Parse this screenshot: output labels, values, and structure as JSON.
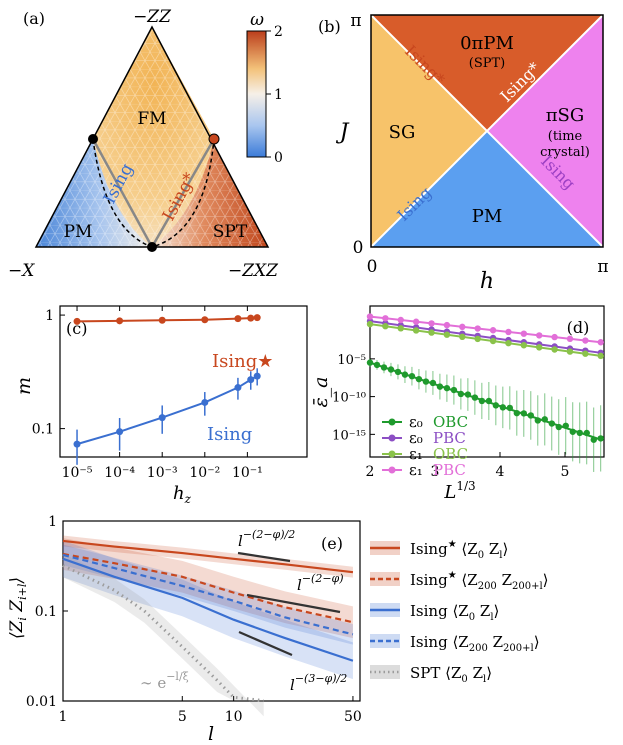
{
  "colors": {
    "red": "#c8471e",
    "blue": "#3a6fd0",
    "orange": "#f5b54a",
    "panel_b_sg": "#f7c36a",
    "panel_b_top": "#d85c2a",
    "panel_b_right": "#ee82ee",
    "panel_b_bottom": "#5b9ff0",
    "green": "#1f9a2d",
    "light_green": "#8ac24a",
    "purple": "#8c4fc4",
    "pink": "#e26fd8",
    "gray": "#9c9c9c"
  },
  "chart_data": [
    {
      "panel": "(a)",
      "type": "heatmap",
      "corners": {
        "top": "−ZZ",
        "left": "−X",
        "right": "−ZXZ"
      },
      "regions": [
        "FM",
        "PM",
        "SPT"
      ],
      "lines": [
        "Ising",
        "Ising*"
      ],
      "colorbar": {
        "label": "ω",
        "ticks": [
          "0",
          "1",
          "2"
        ],
        "range": [
          0,
          2
        ]
      }
    },
    {
      "panel": "(b)",
      "type": "heatmap",
      "xlabel": "h",
      "ylabel": "J",
      "xticks": [
        "0",
        "π"
      ],
      "yticks": [
        "0",
        "π"
      ],
      "regions": {
        "top": [
          "0πPM",
          "(SPT)"
        ],
        "left": "SG",
        "right": [
          "πSG",
          "(time",
          "crystal)"
        ],
        "bottom": "PM"
      },
      "lines": {
        "upper_left": "Ising*",
        "upper_right": "Ising*",
        "lower_left": "Ising",
        "lower_right": "Ising"
      }
    },
    {
      "panel": "(c)",
      "type": "line",
      "xlabel": "h_z",
      "ylabel": "m",
      "xscale": "log",
      "yscale": "log",
      "xticks": [
        "10⁻⁵",
        "10⁻⁴",
        "10⁻³",
        "10⁻²",
        "10⁻¹"
      ],
      "yticks": [
        "0.1",
        "1"
      ],
      "series": [
        {
          "name": "Ising★",
          "x": [
            1e-05,
            0.0001,
            0.001,
            0.01,
            0.06,
            0.12,
            0.17
          ],
          "y": [
            0.88,
            0.89,
            0.9,
            0.91,
            0.93,
            0.94,
            0.95
          ],
          "err": [
            0.03,
            0.03,
            0.03,
            0.03,
            0.03,
            0.03,
            0.03
          ]
        },
        {
          "name": "Ising",
          "x": [
            1e-05,
            0.0001,
            0.001,
            0.01,
            0.06,
            0.12,
            0.17
          ],
          "y": [
            0.073,
            0.094,
            0.125,
            0.17,
            0.23,
            0.27,
            0.29
          ],
          "err": [
            0.025,
            0.03,
            0.035,
            0.04,
            0.05,
            0.05,
            0.05
          ]
        }
      ]
    },
    {
      "panel": "(d)",
      "type": "line",
      "xlabel": "L^{1/3}",
      "ylabel": "ε̄_a",
      "yscale": "log",
      "xlim": [
        2,
        5.6
      ],
      "ylim_exp": [
        -18,
        2
      ],
      "xticks": [
        "2",
        "3",
        "4",
        "5"
      ],
      "yticks": [
        "10⁻⁵",
        "10⁻¹⁰",
        "10⁻¹⁵"
      ],
      "legend": [
        {
          "sym": "ε₀",
          "bc": "OBC"
        },
        {
          "sym": "ε₀",
          "bc": "PBC"
        },
        {
          "sym": "ε₁",
          "bc": "OBC"
        },
        {
          "sym": "ε₁",
          "bc": "PBC"
        }
      ],
      "series": [
        {
          "name": "ε₀ PBC",
          "x0": 2.0,
          "x1": 5.55,
          "logy0": 0.0,
          "logy1": -4.2,
          "n": 16
        },
        {
          "name": "ε₁ OBC",
          "x0": 2.0,
          "x1": 5.55,
          "logy0": -0.4,
          "logy1": -4.6,
          "n": 16
        },
        {
          "name": "ε₁ PBC",
          "x0": 2.0,
          "x1": 5.55,
          "logy0": 0.6,
          "logy1": -2.8,
          "n": 16
        },
        {
          "name": "ε₀ OBC",
          "x0": 2.0,
          "x1": 5.55,
          "logy0": -5.5,
          "logy1": -15.7,
          "n": 34
        }
      ]
    },
    {
      "panel": "(e)",
      "type": "line",
      "xlabel": "l",
      "ylabel": "⟨Z_i Z_{i+l}⟩",
      "xscale": "log",
      "yscale": "log",
      "xticks": [
        "1",
        "5",
        "10",
        "50"
      ],
      "yticks": [
        "0.01",
        "0.1",
        "1"
      ],
      "legend": [
        "Ising★ ⟨Z₀ Z_l⟩",
        "Ising★ ⟨Z₂₀₀ Z₂₀₀₊_l⟩",
        "Ising ⟨Z₀ Z_l⟩",
        "Ising ⟨Z₂₀₀ Z₂₀₀₊_l⟩",
        "SPT ⟨Z₀ Z_l⟩"
      ],
      "series": [
        {
          "name": "Ising★ ⟨Z₀ Z_l⟩",
          "x": [
            1,
            2,
            5,
            10,
            20,
            50
          ],
          "y": [
            0.6,
            0.52,
            0.44,
            0.38,
            0.33,
            0.27
          ]
        },
        {
          "name": "Ising★ ⟨Z₂₀₀ Z₂₀₀₊_l⟩",
          "x": [
            1,
            2,
            5,
            10,
            20,
            50
          ],
          "y": [
            0.43,
            0.34,
            0.24,
            0.16,
            0.11,
            0.075
          ]
        },
        {
          "name": "Ising ⟨Z₀ Z_l⟩",
          "x": [
            1,
            2,
            5,
            10,
            20,
            50
          ],
          "y": [
            0.38,
            0.24,
            0.14,
            0.08,
            0.05,
            0.028
          ]
        },
        {
          "name": "Ising ⟨Z₂₀₀ Z₂₀₀₊_l⟩",
          "x": [
            1,
            2,
            5,
            10,
            20,
            50
          ],
          "y": [
            0.42,
            0.3,
            0.19,
            0.13,
            0.085,
            0.055
          ]
        },
        {
          "name": "SPT ⟨Z₀ Z_l⟩",
          "x": [
            1,
            2,
            3,
            5,
            8,
            10,
            15
          ],
          "y": [
            0.32,
            0.17,
            0.1,
            0.04,
            0.017,
            0.011,
            0.005
          ]
        }
      ],
      "annotations": [
        "l^{−(2−φ)/2}",
        "l^{−(2−φ)}",
        "l^{−(3−φ)/2}",
        "∼ e^{−l/ξ}"
      ]
    }
  ]
}
